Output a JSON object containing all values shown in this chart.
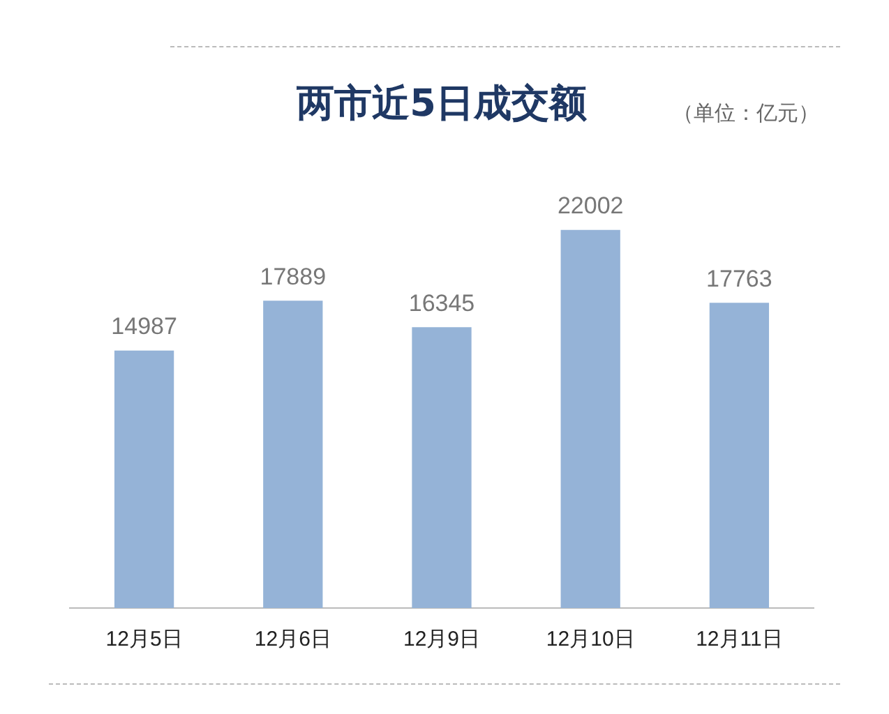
{
  "chart_data": {
    "type": "bar",
    "title": "两市近5日成交额",
    "annotations": [
      "（单位：亿元）"
    ],
    "categories": [
      "12月5日",
      "12月6日",
      "12月9日",
      "12月10日",
      "12月11日"
    ],
    "values": [
      14987,
      17889,
      16345,
      22002,
      17763
    ],
    "color": "#95b3d7",
    "data_labels": true,
    "grid": false,
    "legend": false
  }
}
